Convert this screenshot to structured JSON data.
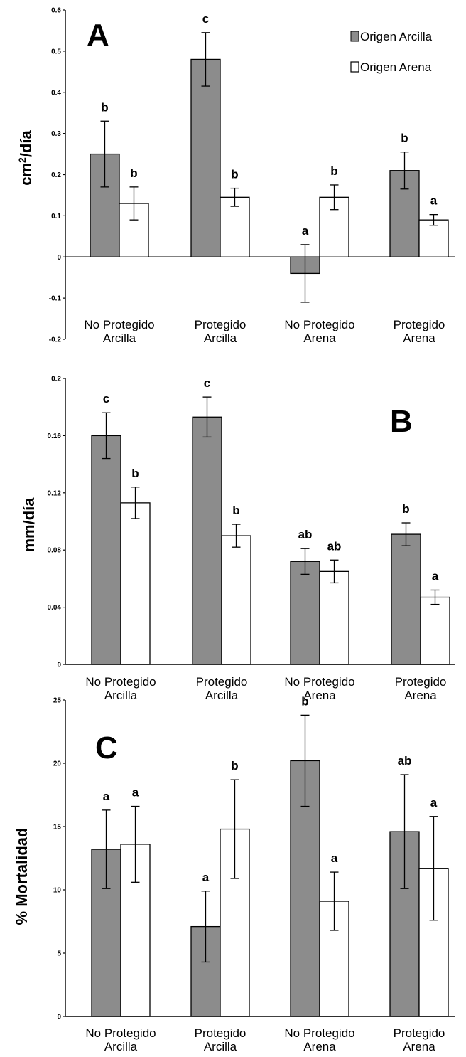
{
  "legend": [
    "Origen Arcilla",
    "Origen Arena"
  ],
  "colors": {
    "arcilla": "#8c8c8c",
    "arena": "#ffffff",
    "stroke": "#000000"
  },
  "chart_data": [
    {
      "type": "bar",
      "panel": "A",
      "ylabel": "cm",
      "ylabel_sup": "2",
      "ylabel_suffix": "/día",
      "ylim": [
        -0.2,
        0.6
      ],
      "yticks": [
        -0.2,
        -0.1,
        0,
        0.1,
        0.2,
        0.3,
        0.4,
        0.5,
        0.6
      ],
      "ytick_labels": [
        "-0.2",
        "-0.1",
        "0",
        "0.1",
        "0.2",
        "0.3",
        "0.4",
        "0.5",
        "0.6"
      ],
      "categories": [
        [
          "No Protegido",
          "Arcilla"
        ],
        [
          "Protegido",
          "Arcilla"
        ],
        [
          "No Protegido",
          "Arena"
        ],
        [
          "Protegido",
          "Arena"
        ]
      ],
      "series": [
        {
          "name": "Origen Arcilla",
          "values": [
            0.25,
            0.48,
            -0.04,
            0.21
          ],
          "errors": [
            0.08,
            0.065,
            0.07,
            0.045
          ],
          "letters": [
            "b",
            "c",
            "a",
            "b"
          ]
        },
        {
          "name": "Origen Arena",
          "values": [
            0.13,
            0.145,
            0.145,
            0.09
          ],
          "errors": [
            0.04,
            0.022,
            0.03,
            0.013
          ],
          "letters": [
            "b",
            "b",
            "b",
            "a"
          ]
        }
      ]
    },
    {
      "type": "bar",
      "panel": "B",
      "ylabel": "mm/día",
      "ylim": [
        0,
        0.2
      ],
      "yticks": [
        0,
        0.04,
        0.08,
        0.12,
        0.16,
        0.2
      ],
      "ytick_labels": [
        "0",
        "0.04",
        "0.08",
        "0.12",
        "0.16",
        "0.2"
      ],
      "categories": [
        [
          "No Protegido",
          "Arcilla"
        ],
        [
          "Protegido",
          "Arcilla"
        ],
        [
          "No Protegido",
          "Arena"
        ],
        [
          "Protegido",
          "Arena"
        ]
      ],
      "series": [
        {
          "name": "Origen Arcilla",
          "values": [
            0.16,
            0.173,
            0.072,
            0.091
          ],
          "errors": [
            0.016,
            0.014,
            0.009,
            0.008
          ],
          "letters": [
            "c",
            "c",
            "ab",
            "b"
          ]
        },
        {
          "name": "Origen Arena",
          "values": [
            0.113,
            0.09,
            0.065,
            0.047
          ],
          "errors": [
            0.011,
            0.008,
            0.008,
            0.005
          ],
          "letters": [
            "b",
            "b",
            "ab",
            "a"
          ]
        }
      ]
    },
    {
      "type": "bar",
      "panel": "C",
      "ylabel": "% Mortalidad",
      "ylim": [
        0,
        25
      ],
      "yticks": [
        0,
        5,
        10,
        15,
        20,
        25
      ],
      "ytick_labels": [
        "0",
        "5",
        "10",
        "15",
        "20",
        "25"
      ],
      "categories": [
        [
          "No Protegido",
          "Arcilla"
        ],
        [
          "Protegido",
          "Arcilla"
        ],
        [
          "No Protegido",
          "Arena"
        ],
        [
          "Protegido",
          "Arena"
        ]
      ],
      "series": [
        {
          "name": "Origen Arcilla",
          "values": [
            13.2,
            7.1,
            20.2,
            14.6
          ],
          "errors": [
            3.1,
            2.8,
            3.6,
            4.5
          ],
          "letters": [
            "a",
            "a",
            "b",
            "ab"
          ]
        },
        {
          "name": "Origen Arena",
          "values": [
            13.6,
            14.8,
            9.1,
            11.7
          ],
          "errors": [
            3.0,
            3.9,
            2.3,
            4.1
          ],
          "letters": [
            "a",
            "b",
            "a",
            "a"
          ]
        }
      ]
    }
  ]
}
